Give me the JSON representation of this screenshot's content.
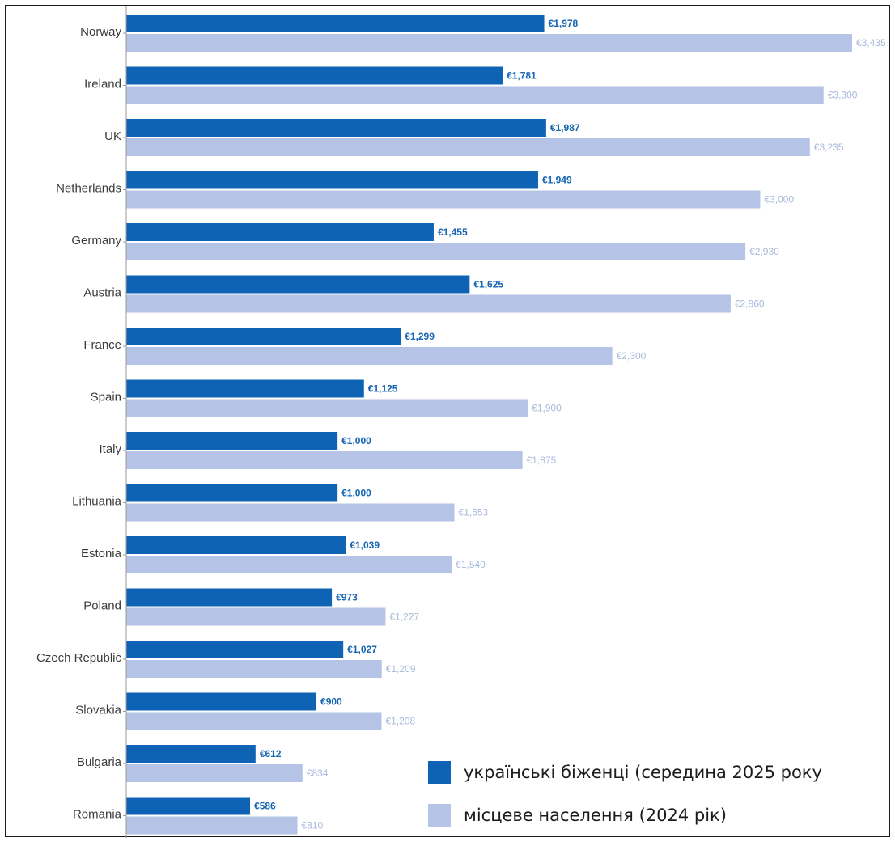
{
  "chart_data": {
    "type": "bar",
    "orientation": "horizontal",
    "categories": [
      "Norway",
      "Ireland",
      "UK",
      "Netherlands",
      "Germany",
      "Austria",
      "France",
      "Spain",
      "Italy",
      "Lithuania",
      "Estonia",
      "Poland",
      "Czech Republic",
      "Slovakia",
      "Bulgaria",
      "Romania"
    ],
    "series": [
      {
        "name": "українські біженці (середина 2025 року",
        "color": "#0e63b5",
        "values": [
          1978,
          1781,
          1987,
          1949,
          1455,
          1625,
          1299,
          1125,
          1000,
          1000,
          1039,
          973,
          1027,
          900,
          612,
          586
        ],
        "labels": [
          "€1,978",
          "€1,781",
          "€1,987",
          "€1,949",
          "€1,455",
          "€1,625",
          "€1,299",
          "€1,125",
          "€1,000",
          "€1,000",
          "€1,039",
          "€973",
          "€1,027",
          "€900",
          "€612",
          "€586"
        ]
      },
      {
        "name": "місцеве населення (2024 рік)",
        "color": "#b5c4e6",
        "values": [
          3435,
          3300,
          3235,
          3000,
          2930,
          2860,
          2300,
          1900,
          1875,
          1553,
          1540,
          1227,
          1209,
          1208,
          834,
          810
        ],
        "labels": [
          "€3,435",
          "€3,300",
          "€3,235",
          "€3,000",
          "€2,930",
          "€2,860",
          "€2,300",
          "€1,900",
          "€1,875",
          "€1,553",
          "€1,540",
          "€1,227",
          "€1,209",
          "€1,208",
          "€834",
          "€810"
        ]
      }
    ],
    "xlim": [
      0,
      3435
    ],
    "grid": false,
    "legend_position": "bottom-right"
  }
}
